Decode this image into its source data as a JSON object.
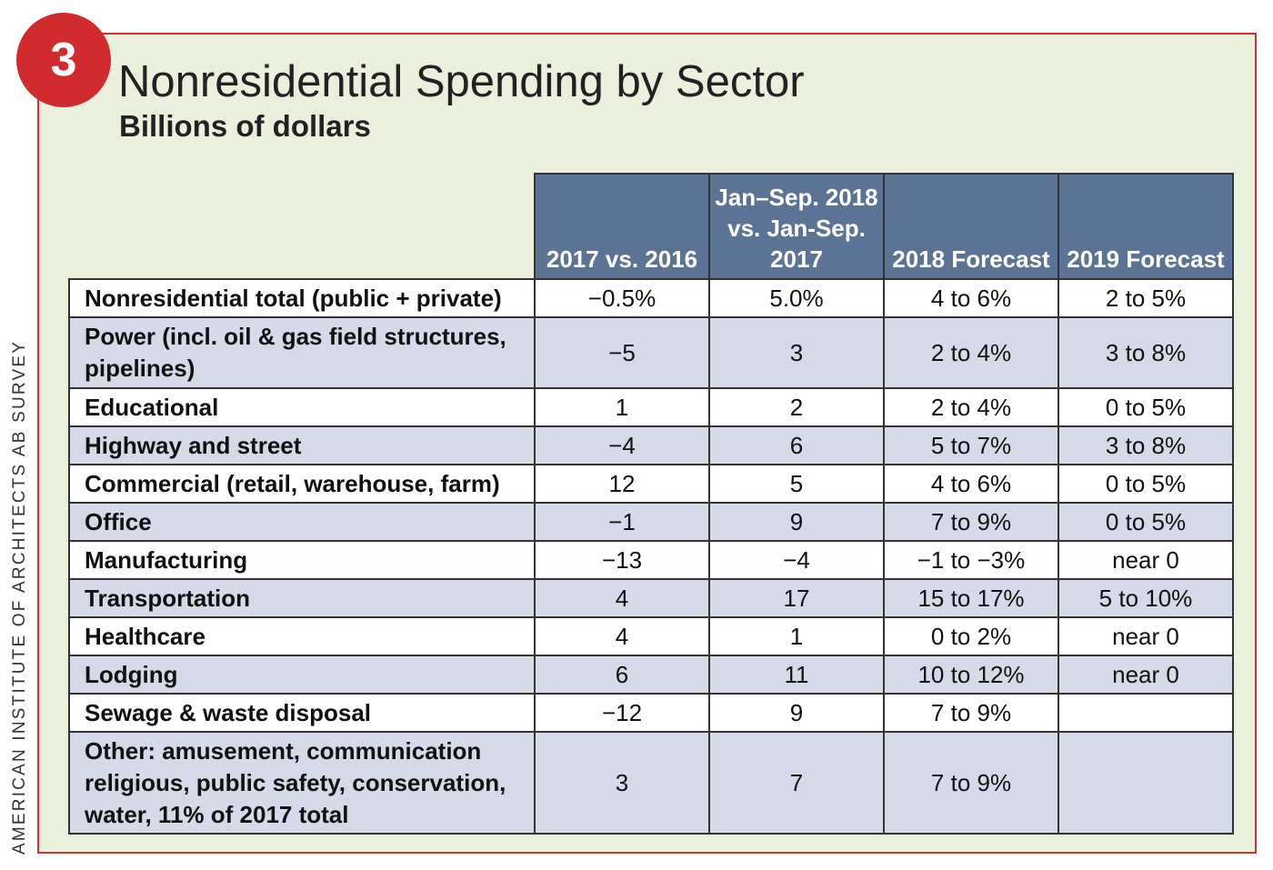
{
  "badge": "3",
  "title": "Nonresidential Spending by Sector",
  "subtitle": "Billions of dollars",
  "credit": "AMERICAN INSTITUTE OF ARCHITECTS AB SURVEY",
  "colors": {
    "border": "#d2313a",
    "badge": "#d12a2f",
    "panel": "#ebf0dc",
    "header": "#5b7395",
    "stripe": "#d5dae8"
  },
  "table": {
    "headers": [
      "2017 vs. 2016",
      "Jan–Sep. 2018 vs. Jan-Sep. 2017",
      "2018 Forecast",
      "2019 Forecast"
    ],
    "rows": [
      {
        "label": "Nonresidential total (public + private)",
        "values": [
          "−0.5%",
          "5.0%",
          "4 to 6%",
          "2 to 5%"
        ]
      },
      {
        "label": "Power (incl. oil & gas field structures, pipelines)",
        "values": [
          "−5",
          "3",
          "2 to 4%",
          "3 to 8%"
        ]
      },
      {
        "label": "Educational",
        "values": [
          "1",
          "2",
          "2 to 4%",
          "0 to 5%"
        ]
      },
      {
        "label": "Highway and street",
        "values": [
          "−4",
          "6",
          "5 to 7%",
          "3 to 8%"
        ]
      },
      {
        "label": "Commercial (retail, warehouse, farm)",
        "values": [
          "12",
          "5",
          "4 to 6%",
          "0 to 5%"
        ]
      },
      {
        "label": "Office",
        "values": [
          "−1",
          "9",
          "7 to 9%",
          "0 to 5%"
        ]
      },
      {
        "label": "Manufacturing",
        "values": [
          "−13",
          "−4",
          "−1 to −3%",
          "near 0"
        ]
      },
      {
        "label": "Transportation",
        "values": [
          "4",
          "17",
          "15 to 17%",
          "5 to 10%"
        ]
      },
      {
        "label": "Healthcare",
        "values": [
          "4",
          "1",
          "0 to 2%",
          "near 0"
        ]
      },
      {
        "label": "Lodging",
        "values": [
          "6",
          "11",
          "10 to 12%",
          "near 0"
        ]
      },
      {
        "label": "Sewage & waste disposal",
        "values": [
          "−12",
          "9",
          "7 to 9%",
          ""
        ]
      },
      {
        "label": "Other: amusement, communication religious, public safety, conservation, water, 11% of 2017 total",
        "values": [
          "3",
          "7",
          "7 to 9%",
          ""
        ]
      }
    ]
  }
}
